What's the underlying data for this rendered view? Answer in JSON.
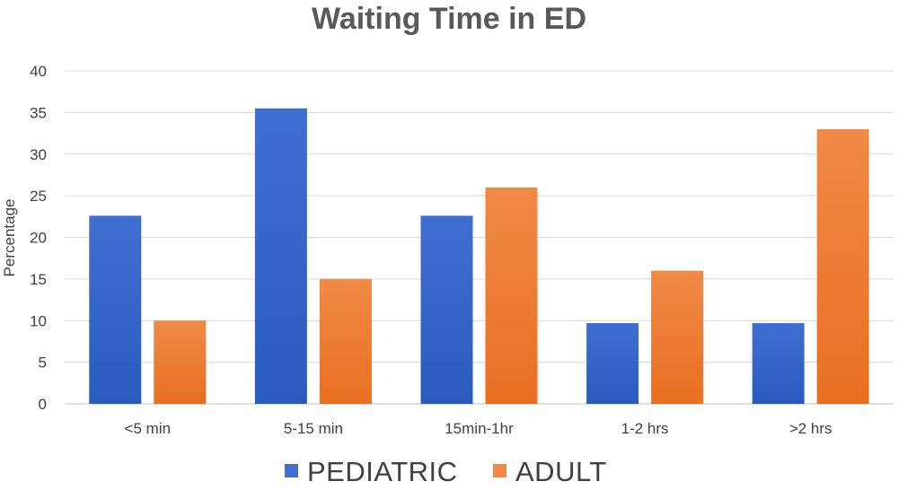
{
  "chart_data": {
    "type": "bar",
    "title": "Waiting Time in ED",
    "xlabel": "",
    "ylabel": "Percentage",
    "ylim": [
      0,
      40
    ],
    "yticks": [
      0,
      5,
      10,
      15,
      20,
      25,
      30,
      35,
      40
    ],
    "grid": true,
    "legend_position": "bottom",
    "categories": [
      "<5 min",
      "5-15 min",
      "15min-1hr",
      "1-2 hrs",
      ">2 hrs"
    ],
    "series": [
      {
        "name": "PEDIATRIC",
        "values": [
          22.6,
          35.5,
          22.6,
          9.7,
          9.7
        ],
        "color": "#3f6fd1",
        "color_dark": "#2a5bbf"
      },
      {
        "name": "ADULT",
        "values": [
          10,
          15,
          26,
          16,
          33
        ],
        "color": "#f08a46",
        "color_dark": "#e96f20"
      }
    ]
  }
}
